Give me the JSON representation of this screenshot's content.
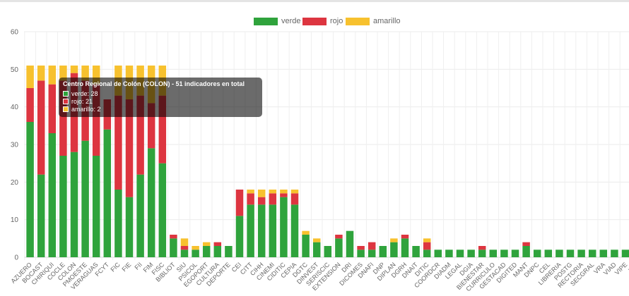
{
  "chart_data": {
    "type": "bar",
    "stacked": true,
    "ylim": [
      0,
      60
    ],
    "yticks": [
      0,
      10,
      20,
      30,
      40,
      50,
      60
    ],
    "grid": true,
    "legend_position": "top",
    "categories": [
      "AZUERO",
      "BOCAST",
      "CHIRIQUI",
      "COCLE",
      "COLON",
      "PMOESTE",
      "VERAGUAS",
      "FCYT",
      "FIC",
      "FIE",
      "FII",
      "FIM",
      "FISC",
      "BIBLIOT",
      "SIU",
      "PSICOL",
      "EGOPORT",
      "CULTURA",
      "DEPORTE",
      "CEI",
      "CITT",
      "CIHH",
      "CINEMI",
      "CIDITIC",
      "CEPIA",
      "DGTC",
      "DINVEST",
      "SERISCIC",
      "EXTENSION",
      "DRI",
      "DICOMES",
      "DNAFI",
      "DNP",
      "DIPLAN",
      "DGRH",
      "DNAIT",
      "DITIC",
      "COORDCR",
      "DIADM",
      "LEGAL",
      "DGIA",
      "BIENESTAR",
      "CURRICULO",
      "GESTACAD",
      "DIGITED",
      "MANT",
      "DNPC",
      "CEL",
      "LIBRERIA",
      "POSTG",
      "RECTORIA",
      "SECGRAL",
      "VRA",
      "VIAD",
      "VIPE",
      "VRI"
    ],
    "series": [
      {
        "name": "verde",
        "color": "#2fa33c",
        "values": [
          36,
          22,
          33,
          27,
          28,
          31,
          27,
          34,
          18,
          16,
          22,
          29,
          25,
          5,
          2,
          2,
          3,
          3,
          3,
          11,
          14,
          14,
          14,
          16,
          14,
          6,
          4,
          3,
          5,
          7,
          2,
          2,
          3,
          4,
          5,
          3,
          2,
          2,
          2,
          2,
          2,
          2,
          2,
          2,
          2,
          3,
          2,
          2,
          2,
          2,
          2,
          2,
          2,
          2,
          2,
          2
        ]
      },
      {
        "name": "rojo",
        "color": "#dd3540",
        "values": [
          9,
          25,
          13,
          20,
          21,
          16,
          19,
          8,
          25,
          26,
          21,
          12,
          18,
          1,
          1,
          0,
          0,
          1,
          0,
          7,
          3,
          2,
          3,
          1,
          3,
          0,
          0,
          0,
          1,
          0,
          1,
          2,
          0,
          0,
          1,
          0,
          2,
          0,
          0,
          0,
          0,
          1,
          0,
          0,
          0,
          1,
          0,
          0,
          0,
          0,
          0,
          0,
          0,
          0,
          0,
          0
        ]
      },
      {
        "name": "amarillo",
        "color": "#f7c12e",
        "values": [
          6,
          4,
          5,
          4,
          2,
          4,
          5,
          0,
          8,
          9,
          8,
          10,
          8,
          0,
          2,
          1,
          1,
          0,
          0,
          0,
          1,
          2,
          1,
          1,
          1,
          1,
          1,
          0,
          0,
          0,
          0,
          0,
          0,
          1,
          0,
          0,
          1,
          0,
          0,
          0,
          0,
          0,
          0,
          0,
          0,
          0,
          0,
          0,
          0,
          0,
          0,
          0,
          0,
          0,
          0,
          0
        ]
      }
    ]
  },
  "legend": {
    "items": [
      {
        "label": "verde",
        "color": "#2fa33c"
      },
      {
        "label": "rojo",
        "color": "#dd3540"
      },
      {
        "label": "amarillo",
        "color": "#f7c12e"
      }
    ]
  },
  "tooltip": {
    "title": "Centro Regional de Colón (COLON) - 51 indicadores en total",
    "rows": [
      {
        "label": "verde: 28",
        "color": "#2fa33c"
      },
      {
        "label": "rojo: 21",
        "color": "#dd3540"
      },
      {
        "label": "amarillo: 2",
        "color": "#f7c12e"
      }
    ]
  }
}
